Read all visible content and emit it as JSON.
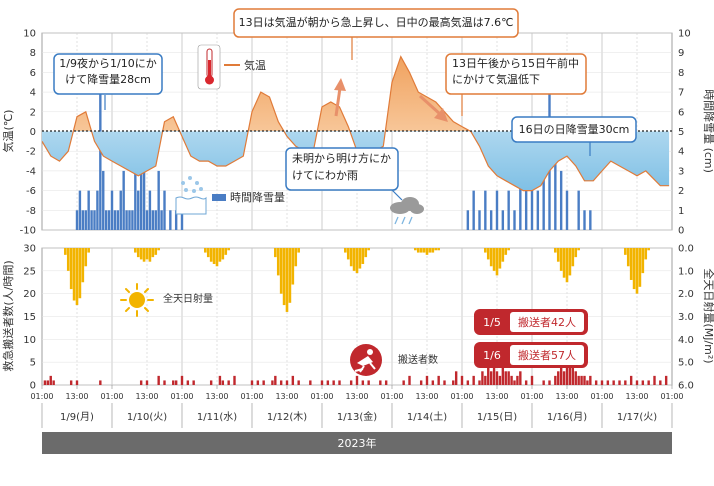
{
  "chart_data": [
    {
      "type": "line",
      "panel": "weather",
      "ylabel_left": "気温(℃)",
      "ylabel_right": "時間降雪量 (cm)",
      "ylim_left": [
        -10,
        10
      ],
      "ylim_right": [
        0,
        10
      ],
      "yticks_left": [
        "10",
        "8",
        "6",
        "4",
        "2",
        "0",
        "-2",
        "-4",
        "-6",
        "-8",
        "-10"
      ],
      "yticks_right": [
        "10",
        "9",
        "8",
        "7",
        "6",
        "5",
        "4",
        "3",
        "2",
        "1",
        "0"
      ],
      "zero_line": "dotted",
      "series": [
        {
          "name": "気温",
          "kind": "line",
          "color": "#e07b39",
          "fill_above_zero": "#f5c08f",
          "fill_below_zero": "#a9d6ef",
          "x_hours": [
            0,
            3,
            6,
            9,
            12,
            15,
            18,
            21,
            24,
            27,
            30,
            33,
            36,
            39,
            42,
            45,
            48,
            51,
            54,
            57,
            60,
            63,
            66,
            69,
            72,
            75,
            78,
            81,
            84,
            87,
            90,
            93,
            96,
            99,
            102,
            105,
            108,
            111,
            114,
            117,
            120,
            123,
            126,
            129,
            132,
            135,
            138,
            141,
            144,
            147,
            150,
            153,
            156,
            159,
            162,
            165,
            168,
            171,
            174,
            177,
            180,
            183,
            186,
            189,
            192,
            195,
            198,
            201,
            204,
            207,
            212,
            215
          ],
          "y": [
            -1.0,
            -2.5,
            -3.0,
            -2.0,
            1.5,
            2.0,
            -1.0,
            -2.5,
            -3.0,
            -3.5,
            -4.0,
            -4.5,
            -4.0,
            -3.5,
            1.0,
            1.5,
            -0.5,
            -2.5,
            -3.0,
            -3.0,
            -3.5,
            -3.5,
            -3.0,
            -2.5,
            2.0,
            4.0,
            3.5,
            1.0,
            -0.5,
            -1.5,
            -2.0,
            -2.0,
            2.5,
            3.0,
            2.5,
            0.5,
            -2.0,
            -2.5,
            -2.0,
            -1.5,
            5.0,
            7.6,
            6.0,
            4.0,
            3.5,
            3.0,
            2.0,
            1.0,
            0.5,
            0.0,
            -1.5,
            -3.5,
            -4.5,
            -5.0,
            -5.5,
            -6.0,
            -6.0,
            -5.5,
            -4.0,
            -3.0,
            -2.5,
            -3.5,
            -5.0,
            -5.0,
            -4.0,
            -3.0,
            -3.5,
            -4.0,
            -4.5,
            -4.0,
            -5.5,
            -5.5
          ]
        },
        {
          "name": "時間降雪量",
          "kind": "bar",
          "color": "#4a7dc4",
          "x_hours": [
            12,
            13,
            14,
            15,
            16,
            17,
            18,
            19,
            20,
            21,
            22,
            23,
            24,
            25,
            26,
            27,
            28,
            29,
            30,
            31,
            32,
            33,
            34,
            35,
            36,
            37,
            38,
            39,
            40,
            41,
            42,
            44,
            46,
            48,
            146,
            148,
            150,
            152,
            154,
            156,
            158,
            160,
            162,
            164,
            166,
            168,
            170,
            172,
            174,
            176,
            178,
            180,
            184,
            186,
            188
          ],
          "values": [
            1,
            2,
            1,
            1,
            2,
            1,
            1,
            2,
            7,
            3,
            1,
            1,
            2,
            1,
            1,
            2,
            3,
            1,
            1,
            1,
            4,
            2,
            5,
            4,
            1,
            2,
            1,
            1,
            3,
            1,
            2,
            1,
            1,
            1,
            1,
            2,
            1,
            2,
            1,
            2,
            1,
            2,
            1,
            3,
            2,
            4,
            2,
            5,
            7,
            4,
            3,
            2,
            2,
            1,
            1
          ]
        }
      ],
      "annotations": [
        "1/9夜から1/10にかけて降雪量28cm",
        "13日は気温が朝から急上昇し、日中の最高気温は7.6℃",
        "13日午後から15日午前中にかけて気温低下",
        "16日の日降雪量30cm",
        "未明から明け方にかけてにわか雨"
      ]
    },
    {
      "type": "bar",
      "panel": "ambulance",
      "ylabel_left": "救急搬送者数(人/時間)",
      "ylabel_right": "全天日射量(MJ/m²)",
      "ylim_left": [
        0,
        30
      ],
      "ylim_right": [
        0.0,
        6.0
      ],
      "yticks_left": [
        "30",
        "25",
        "20",
        "15",
        "10",
        "5",
        "0"
      ],
      "yticks_right": [
        "0.0",
        "1.0",
        "2.0",
        "3.0",
        "4.0",
        "5.0",
        "6.0"
      ],
      "series": [
        {
          "name": "全天日射量",
          "kind": "bar_down",
          "color": "#f2b400",
          "x_hours": [
            8,
            9,
            10,
            11,
            12,
            13,
            14,
            15,
            16,
            32,
            33,
            34,
            35,
            36,
            37,
            38,
            39,
            40,
            56,
            57,
            58,
            59,
            60,
            61,
            62,
            63,
            64,
            80,
            81,
            82,
            83,
            84,
            85,
            86,
            87,
            88,
            104,
            105,
            106,
            107,
            108,
            109,
            110,
            111,
            112,
            128,
            129,
            130,
            131,
            132,
            133,
            134,
            135,
            136,
            152,
            153,
            154,
            155,
            156,
            157,
            158,
            159,
            160,
            176,
            177,
            178,
            179,
            180,
            181,
            182,
            183,
            184,
            200,
            201,
            202,
            203,
            204,
            205,
            206,
            207,
            208
          ],
          "values": [
            0.3,
            1.0,
            1.8,
            2.3,
            2.5,
            2.2,
            1.5,
            0.8,
            0.2,
            0.2,
            0.4,
            0.5,
            0.6,
            0.5,
            0.6,
            0.4,
            0.3,
            0.1,
            0.2,
            0.4,
            0.6,
            0.7,
            0.8,
            0.6,
            0.5,
            0.3,
            0.1,
            0.4,
            1.2,
            2.0,
            2.5,
            2.8,
            2.4,
            1.6,
            0.8,
            0.2,
            0.2,
            0.5,
            0.8,
            1.0,
            1.1,
            0.9,
            0.7,
            0.4,
            0.1,
            0.1,
            0.2,
            0.2,
            0.2,
            0.3,
            0.2,
            0.2,
            0.1,
            0.1,
            0.2,
            0.5,
            0.8,
            1.0,
            1.2,
            0.9,
            0.6,
            0.3,
            0.1,
            0.2,
            0.6,
            1.0,
            1.3,
            1.5,
            1.2,
            0.8,
            0.4,
            0.1,
            0.3,
            0.8,
            1.4,
            1.8,
            2.0,
            1.7,
            1.1,
            0.5,
            0.1
          ]
        },
        {
          "name": "搬送者数",
          "kind": "bar",
          "color": "#c0282d",
          "x_hours": [
            1,
            2,
            3,
            4,
            10,
            12,
            20,
            34,
            36,
            40,
            42,
            45,
            46,
            48,
            50,
            52,
            58,
            61,
            62,
            64,
            66,
            72,
            74,
            76,
            79,
            80,
            82,
            84,
            86,
            88,
            92,
            96,
            98,
            100,
            102,
            106,
            108,
            110,
            112,
            116,
            118,
            124,
            126,
            130,
            132,
            134,
            136,
            138,
            141,
            142,
            144,
            146,
            148,
            150,
            151,
            152,
            153,
            154,
            155,
            156,
            157,
            158,
            159,
            160,
            161,
            162,
            163,
            164,
            166,
            168,
            172,
            174,
            176,
            177,
            178,
            179,
            180,
            181,
            182,
            183,
            184,
            185,
            186,
            187,
            188,
            190,
            192,
            194,
            196,
            198,
            200,
            202,
            204,
            206,
            208,
            210,
            212,
            214
          ],
          "values": [
            1,
            1,
            2,
            1,
            1,
            1,
            1,
            1,
            1,
            2,
            1,
            1,
            1,
            2,
            1,
            1,
            1,
            2,
            1,
            1,
            2,
            1,
            1,
            1,
            1,
            2,
            1,
            1,
            2,
            1,
            1,
            1,
            1,
            1,
            1,
            1,
            2,
            1,
            1,
            1,
            1,
            1,
            2,
            1,
            2,
            1,
            2,
            1,
            1,
            3,
            2,
            1,
            2,
            1,
            3,
            2,
            5,
            3,
            4,
            3,
            2,
            4,
            3,
            3,
            2,
            1,
            2,
            3,
            1,
            2,
            1,
            1,
            2,
            3,
            5,
            3,
            4,
            7,
            5,
            3,
            2,
            2,
            2,
            1,
            2,
            1,
            1,
            1,
            1,
            1,
            1,
            2,
            1,
            1,
            1,
            2,
            1,
            2
          ]
        }
      ],
      "annotations": [
        "全天日射量",
        "搬送者数"
      ],
      "badges": [
        {
          "date": "1/5",
          "text": "搬送者42人"
        },
        {
          "date": "1/6",
          "text": "搬送者57人"
        }
      ]
    }
  ],
  "x_axis": {
    "tick_labels": [
      "01:00",
      "13:00",
      "01:00",
      "13:00",
      "01:00",
      "13:00",
      "01:00",
      "13:00",
      "01:00",
      "13:00",
      "01:00",
      "13:00",
      "01:00",
      "13:00",
      "01:00",
      "13:00",
      "01:00",
      "13:00",
      "01:00"
    ],
    "dates": [
      "1/9(月)",
      "1/10(火)",
      "1/11(水)",
      "1/12(木)",
      "1/13(金)",
      "1/14(土)",
      "1/15(日)",
      "1/16(月)",
      "1/17(火)"
    ],
    "year_label": "2023年"
  },
  "colors": {
    "temp": "#e07b39",
    "snow": "#4a7dc4",
    "sun": "#f2b400",
    "transport": "#c0282d",
    "callout_blue": "#3a7cc3",
    "callout_orange": "#e07b39",
    "year_band": "#6b6b6b"
  },
  "legend": {
    "temp": "気温",
    "snow": "時間降雪量",
    "sun": "全天日射量",
    "transport": "搬送者数"
  }
}
